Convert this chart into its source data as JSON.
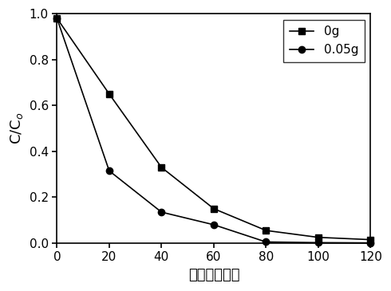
{
  "series": [
    {
      "label": "0g",
      "x": [
        0,
        20,
        40,
        60,
        80,
        100,
        120
      ],
      "y": [
        0.98,
        0.65,
        0.33,
        0.15,
        0.055,
        0.025,
        0.015
      ],
      "marker": "s",
      "color": "#000000",
      "markersize": 6
    },
    {
      "label": "0.05g",
      "x": [
        0,
        20,
        40,
        60,
        80,
        100,
        120
      ],
      "y": [
        0.98,
        0.315,
        0.135,
        0.08,
        0.005,
        0.002,
        0.001
      ],
      "marker": "o",
      "color": "#000000",
      "markersize": 6
    }
  ],
  "xlabel": "时间（分钟）",
  "ylabel": "C/C",
  "ylabel_sub": "o",
  "xlim": [
    0,
    120
  ],
  "ylim": [
    0.0,
    1.0
  ],
  "xticks": [
    0,
    20,
    40,
    60,
    80,
    100,
    120
  ],
  "yticks": [
    0.0,
    0.2,
    0.4,
    0.6,
    0.8,
    1.0
  ],
  "legend_loc": "upper right",
  "background_color": "#ffffff",
  "linewidth": 1.2,
  "tick_fontsize": 11,
  "label_fontsize": 13,
  "legend_fontsize": 11
}
